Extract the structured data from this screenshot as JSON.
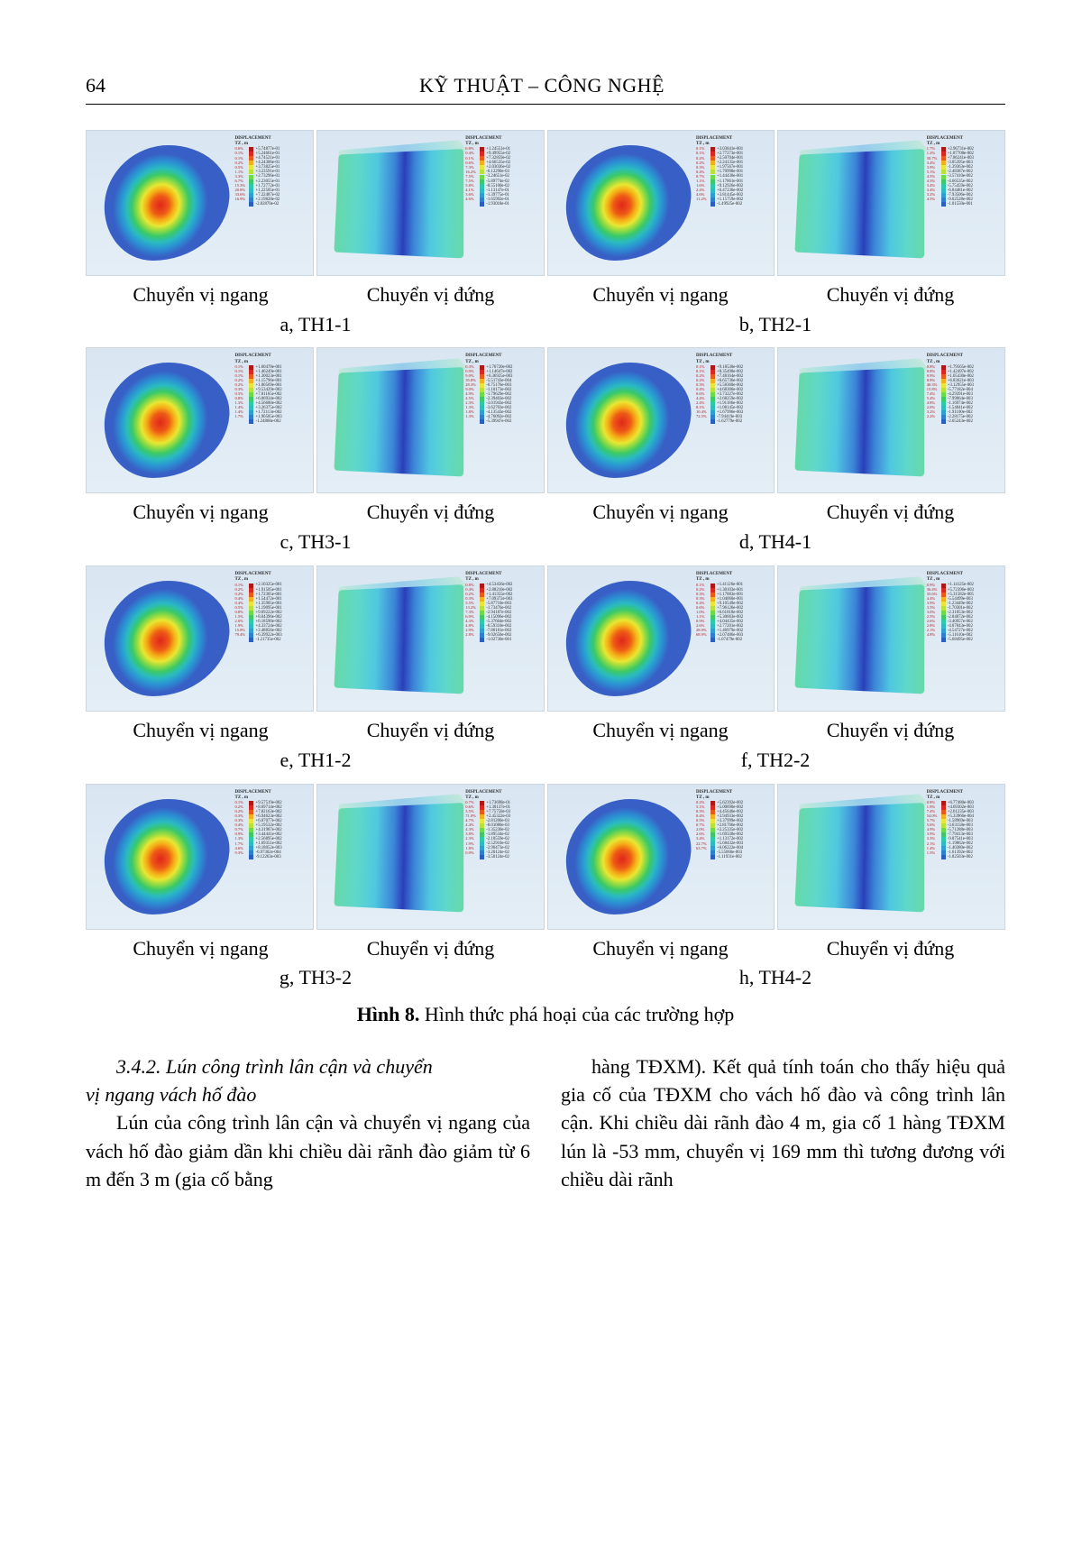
{
  "header": {
    "page_number": "64",
    "title": "KỸ THUẬT – CÔNG NGHỆ"
  },
  "captions": {
    "horiz": "Chuyển vị ngang",
    "vert": "Chuyển vị đứng",
    "rows": [
      {
        "left": "a, TH1-1",
        "right": "b, TH2-1"
      },
      {
        "left": "c, TH3-1",
        "right": "d, TH4-1"
      },
      {
        "left": "e, TH1-2",
        "right": "f, TH2-2"
      },
      {
        "left": "g, TH3-2",
        "right": "h, TH4-2"
      }
    ],
    "main_label": "Hình 8.",
    "main_text": " Hình thức phá hoại của các trường hợp"
  },
  "legend_header": {
    "line1": "DISPLACEMENT",
    "line2": "TZ , m"
  },
  "legend_colors": [
    "#b01818",
    "#d9281f",
    "#e85a1a",
    "#f2b01e",
    "#e9e63a",
    "#b8e23a",
    "#6fd94a",
    "#3fc76a",
    "#2fc9a8",
    "#2fb9c0",
    "#2f9fcf",
    "#2f7fcf",
    "#2a5fc0",
    "#243fa8"
  ],
  "panels": [
    {
      "horiz_vals": [
        "+5.74877e-01",
        "+5.24661e-01",
        "+4.74521e-01",
        "+4.24306e-01",
        "+3.73825e-01",
        "+3.23591e-01",
        "+2.73296e-01",
        "+2.23055e-01",
        "+1.72772e-01",
        "+1.22505e-01",
        "+7.22487e-02",
        "+2.19828e-02",
        "-2.82870e-02"
      ],
      "horiz_pcts": [
        "0.6%",
        "0.1%",
        "0.1%",
        "0.2%",
        "0.5%",
        "1.1%",
        "3.3%",
        "6.7%",
        "15.3%",
        "20.8%",
        "33.6%",
        "16.9%",
        ""
      ],
      "vert_vals": [
        "+1.24551e-01",
        "+9.49955e-02",
        "+7.32859e-02",
        "+4.66535e-02",
        "+2.03036e-02",
        "-6.12290e-03",
        "-3.24651e-02",
        "-5.89774e-02",
        "-8.55100e-02",
        "-1.13147e-01",
        "-1.39775e-01",
        "-1.65992e-01",
        "-1.93018e-01"
      ],
      "vert_pcts": [
        "0.8%",
        "0.4%",
        "0.1%",
        "0.6%",
        "7.3%",
        "16.2%",
        "7.5%",
        "7.5%",
        "5.8%",
        "4.1%",
        "3.6%",
        "4.6%",
        ""
      ]
    },
    {
      "horiz_vals": [
        "+3.03841e-001",
        "+2.77273e-001",
        "+2.50704e-001",
        "+2.24135e-001",
        "+1.97567e-001",
        "+1.70998e-001",
        "+1.44430e-001",
        "+1.17861e-001",
        "+9.12926e-002",
        "+6.47236e-002",
        "+3.81445e-002",
        "+1.15759e-002",
        "-1.49925e-002"
      ],
      "horiz_pcts": [
        "0.1%",
        "0.1%",
        "0.2%",
        "0.2%",
        "0.3%",
        "0.4%",
        "0.7%",
        "1.1%",
        "1.6%",
        "2.4%",
        "4.6%",
        "11.2%",
        ""
      ],
      "vert_vals": [
        "+2.96731e-002",
        "+1.87708e-002",
        "+7.86241e-003",
        "-3.05395e-003",
        "-1.39363e-002",
        "-2.48387e-002",
        "-3.57410e-002",
        "-4.66535e-002",
        "-5.75459e-002",
        "-6.84481e-002",
        "-7.93506e-002",
        "-9.02528e-002",
        "-1.01550e-001"
      ],
      "vert_pcts": [
        "1.7%",
        "1.2%",
        "50.7%",
        "3.4%",
        "3.9%",
        "5.1%",
        "4.5%",
        "4.3%",
        "3.4%",
        "3.4%",
        "3.2%",
        "4.5%",
        ""
      ]
    },
    {
      "horiz_vals": [
        "+1.60478e-001",
        "+1.46249e-001",
        "+1.30023e-001",
        "+1.15796e-001",
        "+1.00569e-001",
        "+9.53429e-002",
        "+7.81165e-002",
        "+6.06934e-002",
        "+4.56680e-002",
        "+3.26375e-002",
        "+1.72113e-002",
        "+1.90585e-003",
        "-1.24868e-002"
      ],
      "horiz_pcts": [
        "0.1%",
        "0.1%",
        "0.1%",
        "0.2%",
        "0.2%",
        "0.3%",
        "0.5%",
        "0.8%",
        "1.3%",
        "1.4%",
        "1.4%",
        "1.7%",
        ""
      ],
      "vert_vals": [
        "+1.76720e-002",
        "+1.14647e-002",
        "+6.36925e-003",
        "-5.51743e-004",
        "-6.75176e-003",
        "-1.10173e-002",
        "-1.79629e-002",
        "-2.39403e-002",
        "-3.01943e-002",
        "-3.62703e-002",
        "-4.13543e-002",
        "-4.76092e-002",
        "-5.39947e-002"
      ],
      "vert_pcts": [
        "0.3%",
        "0.9%",
        "9.0%",
        "35.8%",
        "28.3%",
        "9.0%",
        "4.9%",
        "4.5%",
        "2.3%",
        "1.3%",
        "1.8%",
        "1.3%",
        ""
      ],
      "alt_horiz_vals": [
        "+9.18530e-002",
        "+8.35490e-002",
        "+7.48164e-002",
        "+6.65736e-002",
        "+5.58360e-002",
        "+4.68306e-002",
        "+3.73227e-002",
        "+2.68259e-002",
        "+1.91186e-002",
        "+1.08145e-002",
        "+1.67996e-003",
        "-7.94419e-003",
        "-1.62779e-002"
      ],
      "alt_horiz_pcts": [
        "0.1%",
        "0.1%",
        "0.2%",
        "0.2%",
        "0.3%",
        "0.4%",
        "0.6%",
        "4.4%",
        "2.4%",
        "8.1%",
        "10.4%",
        "72.5%",
        ""
      ],
      "alt_vert_vals": [
        "+1.79565e-002",
        "+1.42497e-002",
        "+1.05430e-002",
        "+6.83621e-003",
        "+3.12955e-003",
        "-5.77182e-004",
        "-4.29391e-003",
        "-7.99064e-003",
        "-1.16974e-002",
        "-1.54041e-002",
        "-1.91100e-002",
        "-2.28175e-002",
        "-2.65243e-002"
      ],
      "alt_vert_pcts": [
        "0.8%",
        "0.8%",
        "0.9%",
        "8.8%",
        "40.3%",
        "15.8%",
        "7.4%",
        "5.4%",
        "4.8%",
        "2.0%",
        "3.2%",
        "2.2%",
        ""
      ]
    },
    {
      "horiz_vals": [
        "+2.10325e-001",
        "+1.91505e-001",
        "+1.72305e-001",
        "+1.54472e-001",
        "+1.35905e-001",
        "+1.19095e-001",
        "+9.69222e-002",
        "+8.04396e-002",
        "+6.18590e-002",
        "+4.33724e-002",
        "+2.48856e-002",
        "+6.39922e-003",
        "-1.21735e-002"
      ],
      "horiz_pcts": [
        "0.1%",
        "0.2%",
        "0.2%",
        "0.4%",
        "0.4%",
        "0.5%",
        "0.8%",
        "1.5%",
        "2.0%",
        "1.9%",
        "15.8%",
        "79.4%",
        ""
      ],
      "vert_vals": [
        "+4.53456e-002",
        "+2.88210e-002",
        "+1.41355e-002",
        "+7.09372e-003",
        "-5.87710e-003",
        "-1.73476e-002",
        "-2.94187e-002",
        "-4.15096e-002",
        "-5.37604e-002",
        "-6.59310e-002",
        "-7.80181e-002",
        "-9.02650e-002",
        "-1.02730e-001"
      ],
      "vert_pcts": [
        "0.8%",
        "0.4%",
        "0.2%",
        "0.3%",
        "5.5%",
        "13.2%",
        "7.3%",
        "6.9%",
        "4.3%",
        "4.8%",
        "2.9%",
        "2.8%",
        ""
      ],
      "alt_horiz_vals": [
        "+1.41126e-001",
        "+1.30103e-001",
        "+1.17883e-001",
        "+1.04060e-001",
        "+9.10549e-002",
        "+7.96126e-002",
        "+6.61818e-002",
        "+5.30663e-002",
        "+4.04435e-002",
        "+2.77201e-002",
        "+1.46979e-002",
        "+2.07486e-003",
        "-1.07479e-002"
      ],
      "alt_horiz_pcts": [
        "0.1%",
        "0.2%",
        "0.3%",
        "0.3%",
        "0.4%",
        "0.6%",
        "1.0%",
        "1.1%",
        "0.9%",
        "2.6%",
        "28.9%",
        "68.9%",
        ""
      ],
      "alt_vert_vals": [
        "+1.14125e-002",
        "+5.72396e-003",
        "+5.31582e-005",
        "-5.54499e-003",
        "-1.23449e-002",
        "-1.70301e-002",
        "-2.31053e-002",
        "-2.84072e-002",
        "-3.40957e-002",
        "-4.07843e-002",
        "-4.54727e-002",
        "-5.11610e-002",
        "-5.68495e-002"
      ],
      "alt_vert_pcts": [
        "0.9%",
        "36.4%",
        "35.6%",
        "4.4%",
        "3.9%",
        "3.5%",
        "3.0%",
        "2.5%",
        "2.6%",
        "2.8%",
        "2.1%",
        "4.8%",
        ""
      ]
    },
    {
      "horiz_vals": [
        "+9.57519e-002",
        "+8.69714e-002",
        "+7.82163e-002",
        "+6.94623e-002",
        "+6.07077e-002",
        "+5.19532e-002",
        "+4.31987e-002",
        "+3.44441e-002",
        "+2.56895e-002",
        "+1.69351e-002",
        "+8.18052e-003",
        "-6.97302e-004",
        "-9.12263e-003"
      ],
      "horiz_pcts": [
        "0.1%",
        "0.2%",
        "0.2%",
        "0.3%",
        "0.3%",
        "0.4%",
        "0.7%",
        "0.9%",
        "1.3%",
        "1.7%",
        "4.6%",
        "9.3%",
        ""
      ],
      "vert_vals": [
        "+1.73698e-01",
        "+1.30137e-01",
        "+7.75758e-03",
        "+2.45322e-03",
        "-2.81200e-03",
        "-8.01080e-03",
        "-1.35230e-02",
        "-1.89534e-02",
        "-2.10559e-02",
        "-2.52910e-02",
        "-2.90473e-02",
        "-3.20124e-02",
        "-3.50124e-02"
      ],
      "vert_pcts": [
        "0.7%",
        "0.6%",
        "3.5%",
        "71.0%",
        "4.7%",
        "4.4%",
        "4.3%",
        "3.8%",
        "2.3%",
        "1.9%",
        "1.8%",
        "0.9%",
        ""
      ],
      "alt_horiz_vals": [
        "+5.62392e-002",
        "+5.00690e-002",
        "+4.45646e-002",
        "+3.94933e-002",
        "+3.37999e-002",
        "+2.81766e-002",
        "+2.25335e-002",
        "+1.69330e-002",
        "+1.13172e-002",
        "+5.68432e-003",
        "+6.06222e-004",
        "-5.55066e-003",
        "-1.11931e-002"
      ],
      "alt_horiz_pcts": [
        "0.2%",
        "5.1%",
        "0.3%",
        "0.4%",
        "0.5%",
        "0.7%",
        "2.0%",
        "2.6%",
        "3.4%",
        "22.7%",
        "63.7%",
        "",
        ""
      ],
      "alt_vert_vals": [
        "+6.77480e-003",
        "+4.69302e-003",
        "+2.61235e-003",
        "+5.33966e-004",
        "-1.58969e-003",
        "-3.63158e-003",
        "-5.71288e-003",
        "-7.79413e-003",
        "-9.87541e-003",
        "-1.19862e-002",
        "-1.40380e-002",
        "-1.61392e-002",
        "-1.82503e-002"
      ],
      "alt_vert_pcts": [
        "0.8%",
        "1.9%",
        "7.4%",
        "54.0%",
        "5.7%",
        "5.6%",
        "4.9%",
        "3.9%",
        "3.3%",
        "2.1%",
        "1.4%",
        "1.5%",
        ""
      ]
    }
  ],
  "body": {
    "section_sub_1": "3.4.2. Lún công trình lân cận và chuyển",
    "section_sub_2": "vị ngang vách hố đào",
    "p1": "Lún của công trình lân cận và chuyển vị ngang của vách hố đào giảm dần khi chiều dài rãnh đào giảm từ 6 m đến 3 m (gia cố bằng",
    "p2": "hàng TĐXM). Kết quả tính toán cho thấy hiệu quả gia cố của TĐXM cho vách hố đào và công trình lân cận. Khi chiều dài rãnh đào 4 m, gia cố 1 hàng TĐXM lún là -53 mm, chuyển vị 169 mm thì tương đương với chiều dài rãnh"
  }
}
